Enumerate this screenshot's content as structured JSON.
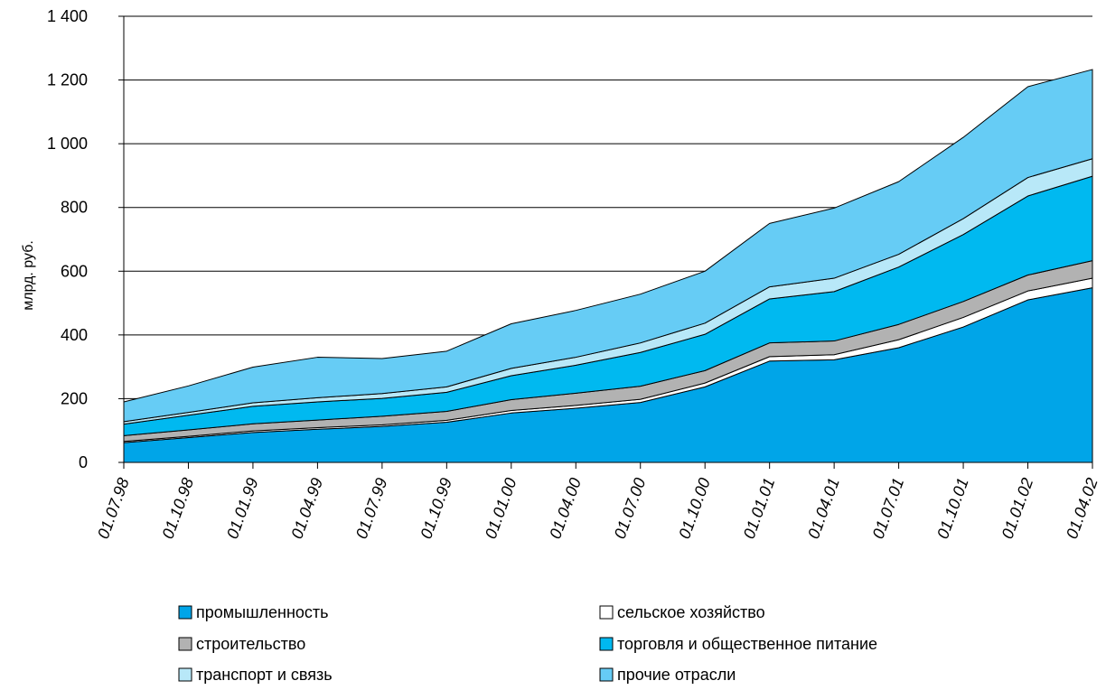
{
  "chart_data": {
    "type": "area",
    "stacked": true,
    "ylabel": "млрд. руб.",
    "xlabel": "",
    "ylim": [
      0,
      1400
    ],
    "yticks": [
      0,
      200,
      400,
      600,
      800,
      1000,
      1200,
      1400
    ],
    "ytick_labels": [
      "0",
      "200",
      "400",
      "600",
      "800",
      "1 000",
      "1 200",
      "1 400"
    ],
    "grid": "horizontal",
    "legend_position": "bottom",
    "categories": [
      "01.07.98",
      "01.10.98",
      "01.01.99",
      "01.04.99",
      "01.07.99",
      "01.10.99",
      "01.01.00",
      "01.04.00",
      "01.07.00",
      "01.10.00",
      "01.01.01",
      "01.04.01",
      "01.07.01",
      "01.10.01",
      "01.01.02",
      "01.04.02"
    ],
    "series": [
      {
        "name": "промышленность",
        "color": "#00a5e8",
        "values": [
          62,
          78,
          94,
          104,
          113,
          126,
          155,
          170,
          188,
          237,
          318,
          322,
          360,
          425,
          510,
          548
        ]
      },
      {
        "name": "сельское хозяйство",
        "color": "#ffffff",
        "values": [
          4,
          4,
          5,
          5,
          5,
          6,
          8,
          9,
          10,
          12,
          14,
          16,
          25,
          30,
          28,
          30
        ]
      },
      {
        "name": "строительство",
        "color": "#b2b2b2",
        "values": [
          18,
          20,
          22,
          24,
          27,
          28,
          34,
          38,
          41,
          39,
          43,
          43,
          48,
          50,
          50,
          55
        ]
      },
      {
        "name": "торговля и общественное питание",
        "color": "#00b9f0",
        "values": [
          36,
          46,
          55,
          57,
          56,
          60,
          75,
          88,
          106,
          114,
          138,
          155,
          180,
          210,
          248,
          265
        ]
      },
      {
        "name": "транспорт и связь",
        "color": "#b8e8f8",
        "values": [
          8,
          9,
          11,
          13,
          15,
          17,
          23,
          25,
          30,
          35,
          38,
          42,
          40,
          50,
          58,
          55
        ]
      },
      {
        "name": "прочие отрасли",
        "color": "#66ccf5",
        "values": [
          62,
          83,
          112,
          127,
          110,
          112,
          140,
          147,
          153,
          163,
          199,
          220,
          228,
          255,
          285,
          280
        ]
      }
    ]
  }
}
